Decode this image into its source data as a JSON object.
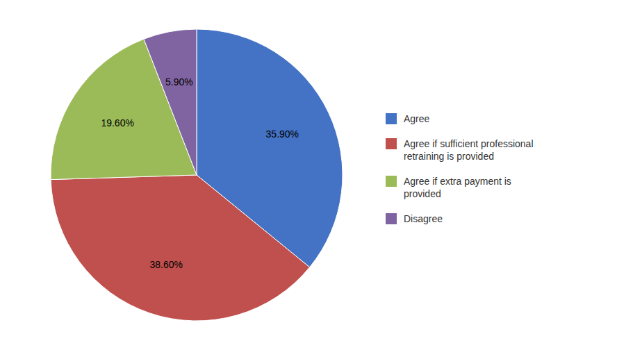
{
  "chart_data": {
    "type": "pie",
    "categories": [
      "Agree",
      "Agree if sufficient professional\nretraining is provided",
      "Agree if extra payment is\nprovided",
      "Disagree"
    ],
    "values": [
      35.9,
      38.6,
      19.6,
      5.9
    ],
    "value_labels": [
      "35.90%",
      "38.60%",
      "19.60%",
      "5.90%"
    ],
    "colors": [
      "#4472C4",
      "#C0504D",
      "#9BBB59",
      "#8064A2"
    ],
    "data_labels": true,
    "legend": "right"
  }
}
